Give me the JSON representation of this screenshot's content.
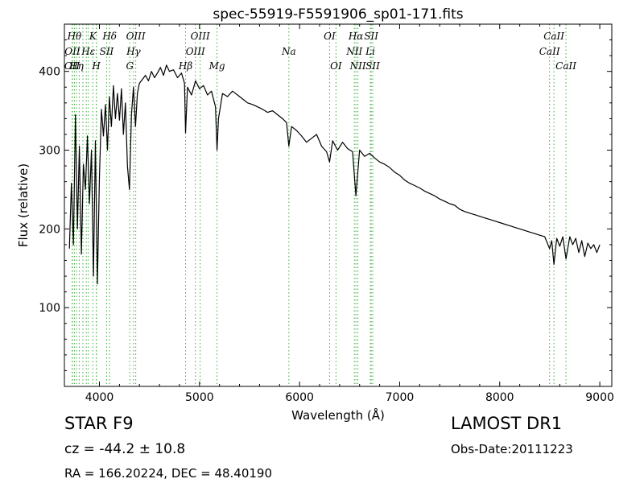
{
  "chart_data": {
    "type": "line",
    "title": "spec-55919-F5591906_sp01-171.fits",
    "xlabel": "Wavelength (Å)",
    "ylabel": "Flux (relative)",
    "xlim": [
      3650,
      9120
    ],
    "ylim": [
      0,
      460
    ],
    "xticks": [
      4000,
      5000,
      6000,
      7000,
      8000,
      9000
    ],
    "yticks": [
      100,
      200,
      300,
      400
    ],
    "grid": false,
    "legend": "none",
    "line_color": "#000000",
    "marker_color": "#44aa44",
    "series": [
      {
        "x": [
          3700,
          3720,
          3740,
          3760,
          3780,
          3800,
          3820,
          3840,
          3860,
          3880,
          3900,
          3920,
          3940,
          3960,
          3980,
          4000,
          4020,
          4040,
          4060,
          4080,
          4100,
          4120,
          4140,
          4160,
          4180,
          4200,
          4220,
          4240,
          4260,
          4280,
          4300,
          4320,
          4340,
          4360,
          4380,
          4400,
          4430,
          4460,
          4490,
          4520,
          4550,
          4580,
          4610,
          4640,
          4670,
          4700,
          4740,
          4780,
          4820,
          4850,
          4861,
          4880,
          4920,
          4960,
          5000,
          5040,
          5080,
          5120,
          5160,
          5175,
          5190,
          5230,
          5280,
          5330,
          5380,
          5430,
          5480,
          5530,
          5580,
          5630,
          5680,
          5730,
          5780,
          5830,
          5870,
          5893,
          5920,
          5970,
          6020,
          6070,
          6120,
          6170,
          6220,
          6270,
          6300,
          6330,
          6380,
          6430,
          6480,
          6530,
          6563,
          6600,
          6650,
          6700,
          6750,
          6800,
          6850,
          6900,
          6950,
          7000,
          7050,
          7100,
          7150,
          7200,
          7250,
          7300,
          7350,
          7400,
          7450,
          7500,
          7550,
          7600,
          7650,
          7700,
          7750,
          7800,
          7850,
          7900,
          7950,
          8000,
          8050,
          8100,
          8150,
          8200,
          8250,
          8300,
          8350,
          8400,
          8450,
          8498,
          8520,
          8542,
          8570,
          8600,
          8630,
          8662,
          8700,
          8730,
          8760,
          8790,
          8820,
          8850,
          8880,
          8910,
          8940,
          8970,
          9000
        ],
        "y": [
          175,
          258,
          180,
          345,
          200,
          305,
          168,
          282,
          250,
          318,
          232,
          300,
          140,
          312,
          130,
          265,
          352,
          318,
          358,
          300,
          368,
          330,
          382,
          340,
          372,
          338,
          378,
          320,
          360,
          280,
          250,
          345,
          380,
          330,
          372,
          385,
          390,
          395,
          388,
          400,
          392,
          398,
          405,
          395,
          408,
          400,
          402,
          392,
          398,
          385,
          322,
          380,
          370,
          388,
          378,
          382,
          370,
          375,
          355,
          300,
          340,
          372,
          368,
          375,
          370,
          365,
          360,
          358,
          355,
          352,
          348,
          350,
          345,
          340,
          335,
          305,
          330,
          325,
          318,
          310,
          315,
          320,
          305,
          298,
          285,
          312,
          300,
          310,
          302,
          298,
          242,
          300,
          292,
          296,
          290,
          285,
          282,
          278,
          272,
          268,
          262,
          258,
          255,
          252,
          248,
          245,
          242,
          238,
          235,
          232,
          230,
          225,
          222,
          220,
          218,
          216,
          214,
          212,
          210,
          208,
          206,
          204,
          202,
          200,
          198,
          196,
          194,
          192,
          190,
          175,
          185,
          155,
          188,
          178,
          190,
          162,
          190,
          180,
          188,
          170,
          185,
          165,
          182,
          175,
          180,
          170,
          180
        ]
      }
    ],
    "lines": [
      {
        "w": 3727,
        "label": "OII",
        "row": 2
      },
      {
        "w": 3730,
        "label": "OII",
        "row": 1
      },
      {
        "w": 3750,
        "label": "Hθ",
        "row": 0
      },
      {
        "w": 3771,
        "label": "Hη",
        "row": 2
      },
      {
        "w": 3798,
        "label": "",
        "row": -1
      },
      {
        "w": 3835,
        "label": "",
        "row": -1
      },
      {
        "w": 3869,
        "label": "",
        "row": -1
      },
      {
        "w": 3889,
        "label": "Hε",
        "row": 1
      },
      {
        "w": 3934,
        "label": "K",
        "row": 0
      },
      {
        "w": 3969,
        "label": "H",
        "row": 2
      },
      {
        "w": 3970,
        "label": "",
        "row": -1
      },
      {
        "w": 4072,
        "label": "SII",
        "row": 1
      },
      {
        "w": 4102,
        "label": "Hδ",
        "row": 0
      },
      {
        "w": 4304,
        "label": "G",
        "row": 2
      },
      {
        "w": 4341,
        "label": "Hγ",
        "row": 1
      },
      {
        "w": 4363,
        "label": "OIII",
        "row": 0
      },
      {
        "w": 4861,
        "label": "Hβ",
        "row": 2
      },
      {
        "w": 4959,
        "label": "OIII",
        "row": 1
      },
      {
        "w": 5007,
        "label": "OIII",
        "row": 0
      },
      {
        "w": 5175,
        "label": "Mg",
        "row": 2
      },
      {
        "w": 5893,
        "label": "Na",
        "row": 1
      },
      {
        "w": 6300,
        "label": "OI",
        "row": 0
      },
      {
        "w": 6364,
        "label": "OI",
        "row": 2
      },
      {
        "w": 6548,
        "label": "NII",
        "row": 1
      },
      {
        "w": 6563,
        "label": "Hα",
        "row": 0
      },
      {
        "w": 6583,
        "label": "NII",
        "row": 2
      },
      {
        "w": 6707,
        "label": "Li",
        "row": 1
      },
      {
        "w": 6716,
        "label": "SII",
        "row": 0
      },
      {
        "w": 6731,
        "label": "SII",
        "row": 2
      },
      {
        "w": 8498,
        "label": "CaII",
        "row": 1
      },
      {
        "w": 8542,
        "label": "CaII",
        "row": 0
      },
      {
        "w": 8662,
        "label": "CaII",
        "row": 2
      }
    ]
  },
  "info": {
    "object_class": "STAR   F9",
    "survey": "LAMOST DR1",
    "redshift": "cz = -44.2 ± 10.8",
    "obs_date": "Obs-Date:20111223",
    "coords": "RA = 166.20224, DEC = 48.40190"
  }
}
